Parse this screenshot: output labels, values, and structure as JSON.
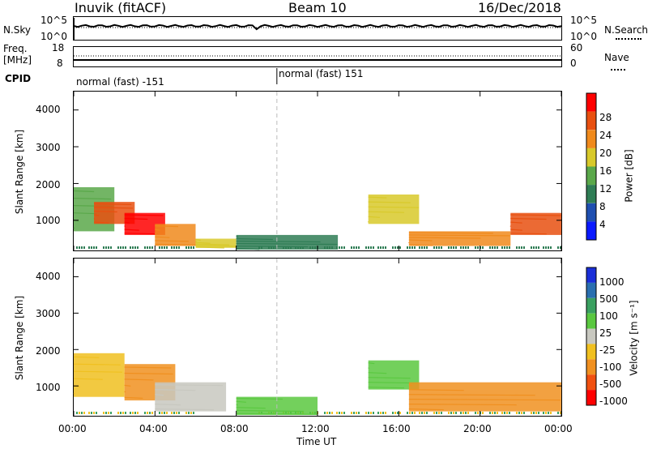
{
  "header": {
    "station": "Inuvik (fitACF)",
    "beam": "Beam 10",
    "date": "16/Dec/2018"
  },
  "noise_panel": {
    "left_label": "N.Sky",
    "right_label": "N.Search",
    "ticks_left": [
      "10^5",
      "10^0"
    ],
    "ticks_right": [
      "10^5",
      "10^0"
    ]
  },
  "freq_panel": {
    "left_label_top": "Freq.",
    "left_label_bottom": "[MHz]",
    "right_label": "Nave",
    "ticks_left": [
      "18",
      "8"
    ],
    "ticks_right": [
      "60",
      "0"
    ]
  },
  "cpid": {
    "label": "CPID",
    "segments": [
      {
        "text": "normal (fast) -151",
        "start": "00:00"
      },
      {
        "text": "normal (fast) 151",
        "start": "10:00"
      }
    ]
  },
  "power_panel": {
    "ylabel": "Slant Range [km]",
    "yticks": [
      "4000",
      "3000",
      "2000",
      "1000"
    ],
    "colorbar_label": "Power [dB]",
    "colorbar_ticks": [
      "28",
      "24",
      "20",
      "16",
      "12",
      "8",
      "4"
    ],
    "colors": [
      "#0a1aff",
      "#1f4fb0",
      "#2f7d55",
      "#5aa84a",
      "#d8c92a",
      "#f08a1c",
      "#e85010",
      "#ff0000"
    ]
  },
  "velocity_panel": {
    "ylabel": "Slant Range [km]",
    "yticks": [
      "4000",
      "3000",
      "2000",
      "1000"
    ],
    "colorbar_label": "Velocity [m s⁻¹]",
    "colorbar_ticks": [
      "1000",
      "500",
      "100",
      "25",
      "-25",
      "-100",
      "-500",
      "-1000"
    ],
    "colors": [
      "#1a2fd8",
      "#2a6fb0",
      "#3aa060",
      "#5ac840",
      "#c8c8c0",
      "#f0c020",
      "#f09020",
      "#f05010",
      "#ff0000"
    ]
  },
  "xaxis": {
    "ticks": [
      "00:00",
      "04:00",
      "08:00",
      "12:00",
      "16:00",
      "20:00",
      "00:00"
    ],
    "label": "Time UT"
  },
  "chart_data": {
    "type": "heatmap",
    "x_range_hours": [
      0,
      24
    ],
    "y_range_km": [
      180,
      4500
    ],
    "panels": [
      {
        "name": "Power",
        "colorscale_range": [
          0,
          30
        ],
        "regions": [
          {
            "t_start": 0.0,
            "t_end": 2.0,
            "r_low": 700,
            "r_high": 1900,
            "value": 14
          },
          {
            "t_start": 1.0,
            "t_end": 3.0,
            "r_low": 900,
            "r_high": 1500,
            "value": 26
          },
          {
            "t_start": 2.5,
            "t_end": 4.5,
            "r_low": 600,
            "r_high": 1200,
            "value": 28
          },
          {
            "t_start": 4.0,
            "t_end": 6.0,
            "r_low": 300,
            "r_high": 900,
            "value": 22
          },
          {
            "t_start": 6.0,
            "t_end": 8.0,
            "r_low": 250,
            "r_high": 500,
            "value": 18
          },
          {
            "t_start": 8.0,
            "t_end": 13.0,
            "r_low": 200,
            "r_high": 600,
            "value": 10
          },
          {
            "t_start": 14.5,
            "t_end": 17.0,
            "r_low": 900,
            "r_high": 1700,
            "value": 18
          },
          {
            "t_start": 16.5,
            "t_end": 21.5,
            "r_low": 300,
            "r_high": 700,
            "value": 20
          },
          {
            "t_start": 21.5,
            "t_end": 24.0,
            "r_low": 600,
            "r_high": 1200,
            "value": 26
          }
        ]
      },
      {
        "name": "Velocity",
        "colorscale_range": [
          -1000,
          1000
        ],
        "regions": [
          {
            "t_start": 0.0,
            "t_end": 2.5,
            "r_low": 700,
            "r_high": 1900,
            "value": -100
          },
          {
            "t_start": 2.5,
            "t_end": 5.0,
            "r_low": 600,
            "r_high": 1600,
            "value": -150
          },
          {
            "t_start": 4.0,
            "t_end": 7.5,
            "r_low": 300,
            "r_high": 1100,
            "value": 0
          },
          {
            "t_start": 8.0,
            "t_end": 12.0,
            "r_low": 200,
            "r_high": 700,
            "value": 80
          },
          {
            "t_start": 14.5,
            "t_end": 17.0,
            "r_low": 900,
            "r_high": 1700,
            "value": 80
          },
          {
            "t_start": 16.5,
            "t_end": 24.0,
            "r_low": 300,
            "r_high": 1100,
            "value": -200
          }
        ]
      }
    ]
  }
}
